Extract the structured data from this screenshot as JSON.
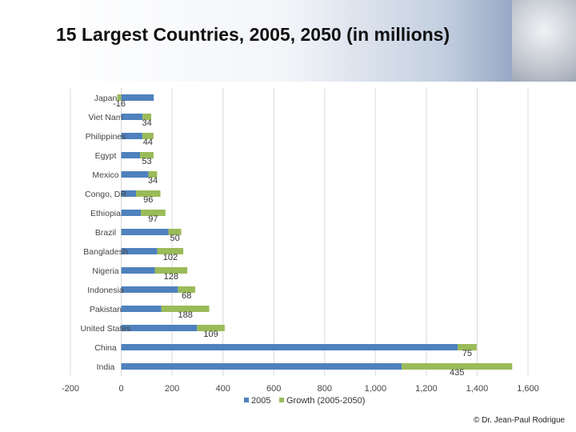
{
  "slide": {
    "title": "15 Largest Countries, 2005, 2050 (in millions)",
    "copyright": "© Dr. Jean-Paul Rodrigue"
  },
  "chart_data": {
    "type": "bar",
    "orientation": "horizontal",
    "stacked": true,
    "title": "15 Largest Countries, 2005, 2050 (in millions)",
    "categories": [
      "Japan",
      "Viet Nam",
      "Philippines",
      "Egypt",
      "Mexico",
      "Congo, DR",
      "Ethiopia",
      "Brazil",
      "Bangladesh",
      "Nigeria",
      "Indonesia",
      "Pakistan",
      "United States",
      "China",
      "India"
    ],
    "series": [
      {
        "name": "2005",
        "color": "#4f81bd",
        "values": [
          128,
          84,
          83,
          74,
          107,
          58,
          77,
          186,
          142,
          132,
          223,
          158,
          298,
          1323,
          1103
        ]
      },
      {
        "name": "Growth (2005-2050)",
        "color": "#9bbb59",
        "values": [
          -16,
          34,
          44,
          53,
          34,
          96,
          97,
          50,
          102,
          128,
          68,
          188,
          109,
          75,
          435
        ]
      }
    ],
    "data_labels": [
      "-16",
      "34",
      "44",
      "53",
      "34",
      "96",
      "97",
      "50",
      "102",
      "128",
      "68",
      "188",
      "109",
      "75",
      "435"
    ],
    "xlim": [
      -200,
      1600
    ],
    "xticks": [
      -200,
      0,
      200,
      400,
      600,
      800,
      1000,
      1200,
      1400,
      1600
    ],
    "xtick_labels": [
      "-200",
      "0",
      "200",
      "400",
      "600",
      "800",
      "1,000",
      "1,200",
      "1,400",
      "1,600"
    ],
    "xlabel": "",
    "ylabel": "",
    "grid": true,
    "legend_position": "bottom"
  }
}
